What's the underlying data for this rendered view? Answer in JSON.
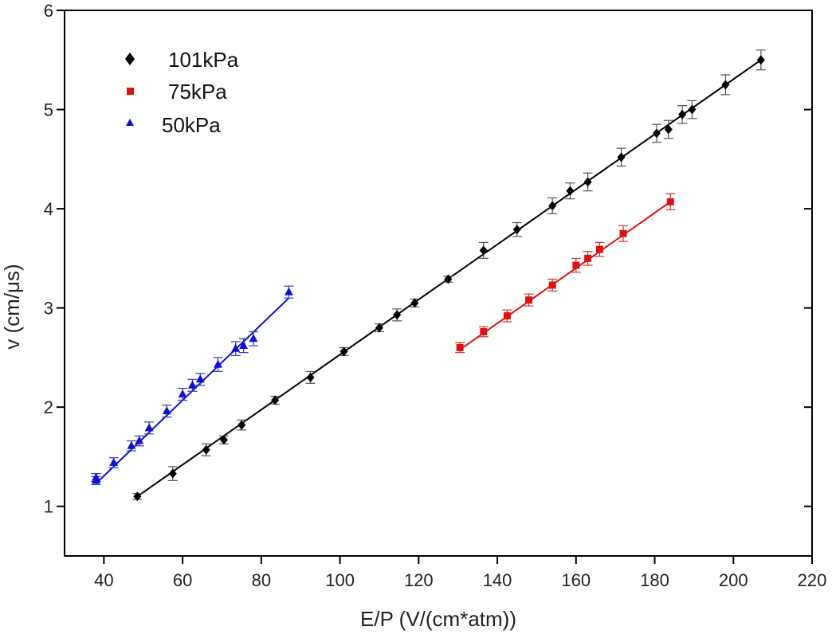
{
  "chart_data": {
    "type": "scatter",
    "title": "",
    "xlabel": "E/P (V/(cm*atm))",
    "ylabel": "v (cm/μs)",
    "xlim": [
      30,
      220
    ],
    "ylim": [
      0.5,
      6
    ],
    "xticks": [
      40,
      60,
      80,
      100,
      120,
      140,
      160,
      180,
      200,
      220
    ],
    "yticks": [
      1,
      2,
      3,
      4,
      5,
      6
    ],
    "legend_position": "top-left",
    "series": [
      {
        "name": "101kPa",
        "marker": "diamond",
        "color": "#000000",
        "errcolor": "#555555",
        "x": [
          48.5,
          57.5,
          66,
          70.5,
          75,
          83.5,
          92.5,
          101,
          110,
          114.5,
          119,
          127.5,
          136.5,
          145,
          154,
          158.5,
          163,
          171.5,
          180.5,
          183.5,
          187,
          189.5,
          198,
          207
        ],
        "y": [
          1.1,
          1.33,
          1.57,
          1.67,
          1.82,
          2.07,
          2.3,
          2.56,
          2.8,
          2.93,
          3.05,
          3.29,
          3.58,
          3.79,
          4.03,
          4.18,
          4.27,
          4.52,
          4.76,
          4.8,
          4.95,
          5.0,
          5.25,
          5.5
        ],
        "err": [
          0.03,
          0.07,
          0.06,
          0.04,
          0.05,
          0.04,
          0.06,
          0.04,
          0.04,
          0.06,
          0.04,
          0.03,
          0.08,
          0.07,
          0.08,
          0.08,
          0.09,
          0.09,
          0.09,
          0.09,
          0.09,
          0.09,
          0.1,
          0.1
        ],
        "fit": {
          "x": [
            48.5,
            207
          ],
          "y": [
            1.1,
            5.5
          ]
        }
      },
      {
        "name": "75kPa",
        "marker": "square",
        "color": "#dd1111",
        "errcolor": "#cc3333",
        "x": [
          130.5,
          136.5,
          142.5,
          148,
          154,
          160,
          163,
          166,
          172,
          184
        ],
        "y": [
          2.6,
          2.76,
          2.92,
          3.08,
          3.23,
          3.43,
          3.5,
          3.59,
          3.75,
          4.07
        ],
        "err": [
          0.05,
          0.05,
          0.06,
          0.06,
          0.06,
          0.07,
          0.07,
          0.07,
          0.08,
          0.08
        ],
        "fit": {
          "x": [
            130.5,
            184
          ],
          "y": [
            2.58,
            4.07
          ]
        }
      },
      {
        "name": "50kPa",
        "marker": "triangle",
        "color": "#1010cc",
        "errcolor": "#3333cc",
        "x": [
          38,
          38,
          42.5,
          47,
          49,
          51.5,
          56,
          60,
          62.5,
          64.5,
          69,
          73.5,
          75.5,
          78,
          87
        ],
        "y": [
          1.26,
          1.29,
          1.44,
          1.61,
          1.66,
          1.79,
          1.96,
          2.13,
          2.22,
          2.28,
          2.43,
          2.59,
          2.62,
          2.69,
          3.16
        ],
        "err": [
          0.04,
          0.04,
          0.05,
          0.05,
          0.05,
          0.06,
          0.06,
          0.06,
          0.06,
          0.06,
          0.07,
          0.07,
          0.07,
          0.07,
          0.06
        ],
        "fit": {
          "x": [
            38,
            87
          ],
          "y": [
            1.23,
            3.1
          ]
        }
      }
    ]
  }
}
